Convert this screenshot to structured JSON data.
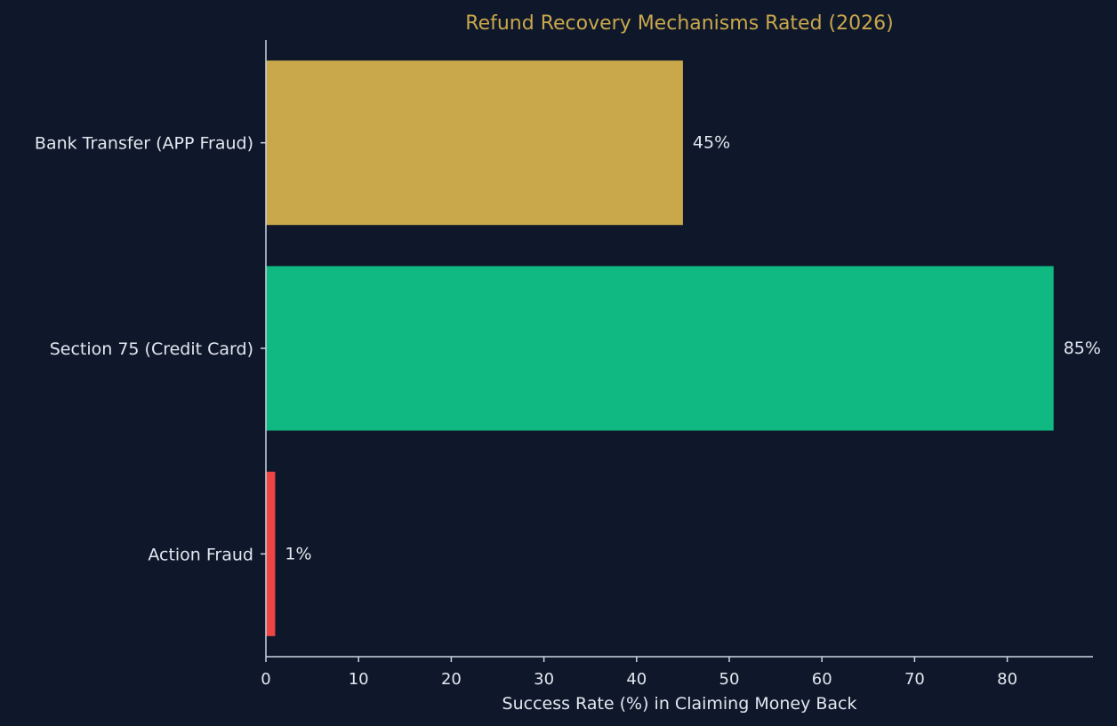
{
  "chart_data": {
    "type": "bar",
    "orientation": "horizontal",
    "title": "Refund Recovery Mechanisms Rated (2026)",
    "xlabel": "Success Rate (%) in Claiming Money Back",
    "ylabel": "",
    "categories": [
      "Bank Transfer (APP Fraud)",
      "Section 75 (Credit Card)",
      "Action Fraud"
    ],
    "values": [
      45,
      85,
      1
    ],
    "value_labels": [
      "45%",
      "85%",
      "1%"
    ],
    "bar_colors": [
      "#c9a84c",
      "#10b981",
      "#ef4444"
    ],
    "xlim": [
      0,
      89.25
    ],
    "xticks": [
      0,
      10,
      20,
      30,
      40,
      50,
      60,
      70,
      80
    ],
    "grid": false,
    "legend": "none"
  },
  "colors": {
    "background": "#0f172a",
    "title": "#c9a84c",
    "text": "#e2e8f0",
    "axis": "#cbd5e1"
  }
}
